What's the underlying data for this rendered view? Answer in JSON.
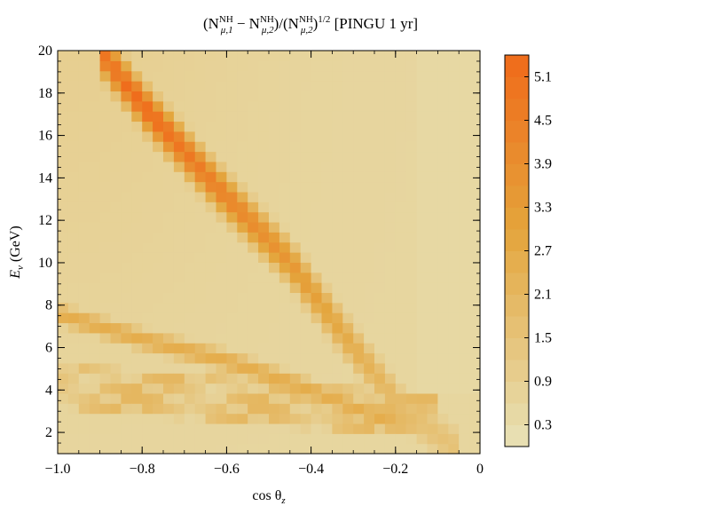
{
  "chart_data": {
    "type": "heatmap",
    "title_parts": {
      "open": "(N",
      "sub1": "μ,1",
      "sup1": "NH",
      "minus": " − N",
      "sub2": "μ,2",
      "sup2": "NH",
      "mid": ")/(N",
      "sub3": "μ,2",
      "sup3": "NH",
      "close": ")",
      "power": "1/2",
      "tail": " [PINGU 1 yr]"
    },
    "xlabel": "cos θ",
    "xlabel_sub": "z",
    "ylabel": "E",
    "ylabel_sub": "ν",
    "ylabel_unit": " (GeV)",
    "xlim": [
      -1.0,
      0.0
    ],
    "ylim": [
      1.0,
      20.0
    ],
    "xticks": [
      -1.0,
      -0.8,
      -0.6,
      -0.4,
      -0.2,
      0
    ],
    "xtick_labels": [
      "−1.0",
      "−0.8",
      "−0.6",
      "−0.4",
      "−0.2",
      "0"
    ],
    "yticks": [
      2,
      4,
      6,
      8,
      10,
      12,
      14,
      16,
      18,
      20
    ],
    "ytick_labels": [
      "2",
      "4",
      "6",
      "8",
      "10",
      "12",
      "14",
      "16",
      "18",
      "20"
    ],
    "grid": false,
    "colorbar": {
      "min": 0.0,
      "max": 5.4,
      "tick_values": [
        0.3,
        0.9,
        1.5,
        2.1,
        2.7,
        3.3,
        3.9,
        4.5,
        5.1
      ],
      "tick_labels": [
        "0.3",
        "0.9",
        "1.5",
        "2.1",
        "2.7",
        "3.3",
        "3.9",
        "4.5",
        "5.1"
      ],
      "color_low": "#e8e2b8",
      "color_mid": "#e4a53c",
      "color_high": "#f06a1a"
    },
    "grid_size": [
      40,
      40
    ],
    "features": {
      "main_ridge": {
        "points": [
          [
            -0.9,
            20.0
          ],
          [
            -0.78,
            17.0
          ],
          [
            -0.62,
            13.5
          ],
          [
            -0.45,
            10.0
          ],
          [
            -0.3,
            6.0
          ],
          [
            -0.18,
            3.0
          ],
          [
            -0.05,
            1.2
          ]
        ],
        "peak_value": 5.3,
        "width_cos": 0.04
      },
      "secondary_band": {
        "points": [
          [
            -1.0,
            7.6
          ],
          [
            -0.8,
            6.4
          ],
          [
            -0.6,
            5.4
          ],
          [
            -0.4,
            4.0
          ],
          [
            -0.2,
            2.4
          ]
        ],
        "peak_value": 2.6
      },
      "low_energy_bands_gev": [
        1.8,
        2.7,
        3.6,
        4.6
      ],
      "low_energy_peak_value": 2.1,
      "background_value": 0.6
    }
  }
}
